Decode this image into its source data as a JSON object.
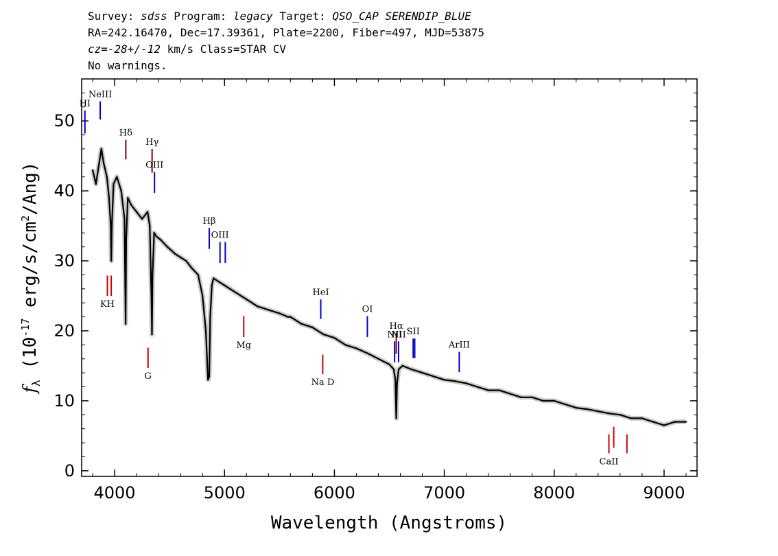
{
  "header": {
    "line1": {
      "survey_label": "Survey: ",
      "survey": "sdss",
      "program_label": " Program: ",
      "program": "legacy",
      "target_label": " Target: ",
      "target": "QSO_CAP SERENDIP_BLUE"
    },
    "line2": "RA=242.16470, Dec=17.39361, Plate=2200, Fiber=497, MJD=53875",
    "line3": {
      "cz": "cz=-28+/-12",
      "rest": " km/s Class=STAR CV"
    },
    "line4": "No warnings."
  },
  "chart_data": {
    "type": "line",
    "xlabel": "Wavelength (Angstroms)",
    "ylabel": "f_λ (10^-17 erg/s/cm^2/Ang)",
    "xlim": [
      3700,
      9300
    ],
    "ylim": [
      -0.8,
      56
    ],
    "xticks": [
      4000,
      5000,
      6000,
      7000,
      8000,
      9000
    ],
    "yticks": [
      0,
      10,
      20,
      30,
      40,
      50
    ],
    "grid": false,
    "series": [
      {
        "color": "#000000",
        "x": [
          3800,
          3830,
          3860,
          3880,
          3900,
          3930,
          3950,
          3965,
          3970,
          3975,
          3990,
          4020,
          4060,
          4090,
          4100,
          4105,
          4120,
          4150,
          4200,
          4250,
          4300,
          4320,
          4335,
          4340,
          4345,
          4360,
          4380,
          4420,
          4480,
          4550,
          4600,
          4650,
          4700,
          4760,
          4800,
          4830,
          4850,
          4861,
          4870,
          4885,
          4900,
          4950,
          5000,
          5100,
          5200,
          5300,
          5400,
          5500,
          5577,
          5600,
          5700,
          5800,
          5900,
          6000,
          6100,
          6200,
          6300,
          6400,
          6500,
          6540,
          6555,
          6563,
          6570,
          6585,
          6620,
          6700,
          6800,
          6900,
          7000,
          7100,
          7200,
          7300,
          7400,
          7500,
          7600,
          7700,
          7800,
          7900,
          8000,
          8100,
          8200,
          8300,
          8400,
          8500,
          8600,
          8700,
          8800,
          8900,
          9000,
          9100,
          9200
        ],
        "y": [
          43,
          41,
          44,
          46,
          44,
          42,
          39,
          35,
          30,
          35,
          41,
          42,
          40,
          36,
          21,
          33,
          39,
          38,
          37,
          36,
          37,
          35,
          25,
          19.5,
          28,
          34,
          33.5,
          33,
          32,
          31,
          30.5,
          30,
          29,
          28,
          25,
          20,
          13,
          13.5,
          22,
          26.5,
          27.5,
          27,
          26.5,
          25.5,
          24.5,
          23.5,
          23,
          22.5,
          22,
          22,
          21,
          20.5,
          19.5,
          19,
          18,
          17.5,
          16.8,
          16,
          15.2,
          14.5,
          13,
          7.5,
          12.5,
          14.5,
          15,
          14.5,
          14,
          13.5,
          13,
          12.8,
          12.5,
          12,
          11.5,
          11.5,
          11,
          10.5,
          10.5,
          10,
          10,
          9.5,
          9,
          8.8,
          8.5,
          8.2,
          8,
          7.5,
          7.5,
          7,
          6.5,
          7,
          7
        ]
      }
    ],
    "lines": [
      {
        "label": "HI",
        "x": 3730,
        "y0": 48.2,
        "y1": 51.5,
        "color": "#0000cc"
      },
      {
        "label": "NeIII",
        "x": 3869,
        "y0": 50.2,
        "y1": 52.8,
        "color": "#0000cc"
      },
      {
        "label": "Hδ",
        "x": 4102,
        "y0": 44.5,
        "y1": 47.3,
        "color": "#800000"
      },
      {
        "label": "Hγ",
        "x": 4341,
        "y0": 42.6,
        "y1": 46,
        "color": "#800000"
      },
      {
        "label": "OIII",
        "x": 4363,
        "y0": 39.7,
        "y1": 42.7,
        "color": "#0000cc"
      },
      {
        "label": "Hβ",
        "x": 4861,
        "y0": 31.7,
        "y1": 34.7,
        "color": "#0000cc"
      },
      {
        "label": "OIII",
        "x": 4959,
        "y0": 29.7,
        "y1": 32.7,
        "color": "#0000cc"
      },
      {
        "label": "",
        "x": 5007,
        "y0": 29.7,
        "y1": 32.7,
        "color": "#0000cc"
      },
      {
        "label": "HeI",
        "x": 5876,
        "y0": 21.7,
        "y1": 24.5,
        "color": "#0000cc"
      },
      {
        "label": "OI",
        "x": 6300,
        "y0": 19.1,
        "y1": 22.1,
        "color": "#0000cc"
      },
      {
        "label": "NII",
        "x": 6548,
        "y0": 15.5,
        "y1": 18.5,
        "color": "#0000cc"
      },
      {
        "label": "Hα",
        "x": 6563,
        "y0": 16.7,
        "y1": 19.7,
        "color": "#800000"
      },
      {
        "label": "NII",
        "x": 6584,
        "y0": 15.5,
        "y1": 18.5,
        "color": "#0000cc"
      },
      {
        "label": "SII",
        "x": 6717,
        "y0": 16.1,
        "y1": 18.9,
        "color": "#0000cc"
      },
      {
        "label": "",
        "x": 6731,
        "y0": 16.1,
        "y1": 18.9,
        "color": "#0000cc"
      },
      {
        "label": "ArIII",
        "x": 7136,
        "y0": 14.1,
        "y1": 17,
        "color": "#0000cc"
      },
      {
        "label": "KH",
        "x": 3934,
        "y0": 25,
        "y1": 27.9,
        "color": "#cc0000"
      },
      {
        "label": "",
        "x": 3969,
        "y0": 25,
        "y1": 27.9,
        "color": "#cc0000"
      },
      {
        "label": "G",
        "x": 4304,
        "y0": 14.7,
        "y1": 17.6,
        "color": "#cc0000"
      },
      {
        "label": "Mg",
        "x": 5175,
        "y0": 19.1,
        "y1": 22.1,
        "color": "#cc0000"
      },
      {
        "label": "Na D",
        "x": 5894,
        "y0": 13.8,
        "y1": 16.6,
        "color": "#cc0000"
      },
      {
        "label": "CaII",
        "x": 8498,
        "y0": 2.5,
        "y1": 5.2,
        "color": "#cc0000"
      },
      {
        "label": "",
        "x": 8542,
        "y0": 3.3,
        "y1": 6.3,
        "color": "#cc0000"
      },
      {
        "label": "",
        "x": 8662,
        "y0": 2.5,
        "y1": 5.2,
        "color": "#cc0000"
      }
    ]
  }
}
